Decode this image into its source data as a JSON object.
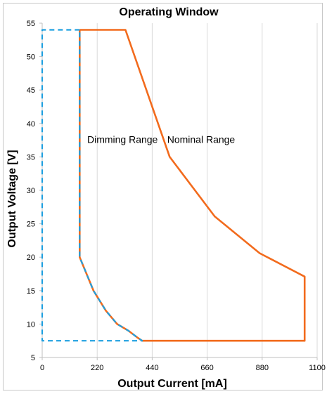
{
  "chart_data": {
    "type": "line",
    "title": "Operating Window",
    "xlabel": "Output Current [mA]",
    "ylabel": "Output Voltage [V]",
    "xlim": [
      0,
      1100
    ],
    "ylim": [
      5,
      55
    ],
    "xticks": [
      0,
      220,
      440,
      660,
      880,
      1100
    ],
    "yticks": [
      5,
      10,
      15,
      20,
      25,
      30,
      35,
      40,
      45,
      50,
      55
    ],
    "grid": "vertical",
    "colors": {
      "nominal": "#f26b1d",
      "dimming": "#1fa0e0",
      "grid": "#d9d9d9",
      "axis": "#bfbfbf"
    },
    "series": [
      {
        "key": "nominal",
        "line_style": "solid",
        "points": [
          [
            150,
            54
          ],
          [
            333,
            54
          ],
          [
            510,
            35
          ],
          [
            690,
            26.1
          ],
          [
            870,
            20.6
          ],
          [
            1050,
            17.1
          ],
          [
            1050,
            7.5
          ],
          [
            400,
            7.5
          ],
          [
            380,
            8
          ],
          [
            345,
            9
          ],
          [
            300,
            10
          ],
          [
            255,
            12
          ],
          [
            205,
            15
          ],
          [
            150,
            20
          ],
          [
            150,
            54
          ]
        ]
      },
      {
        "key": "dimming",
        "line_style": "dashed",
        "points": [
          [
            150,
            54
          ],
          [
            0,
            54
          ],
          [
            0,
            7.5
          ],
          [
            400,
            7.5
          ],
          [
            380,
            8
          ],
          [
            345,
            9
          ],
          [
            300,
            10
          ],
          [
            255,
            12
          ],
          [
            205,
            15
          ],
          [
            150,
            20
          ],
          [
            150,
            54
          ]
        ]
      }
    ],
    "annotations": [
      {
        "text": "Dimming Range",
        "x": 180,
        "y": 37.1
      },
      {
        "text": "Nominal Range",
        "x": 500,
        "y": 37.1
      }
    ]
  }
}
